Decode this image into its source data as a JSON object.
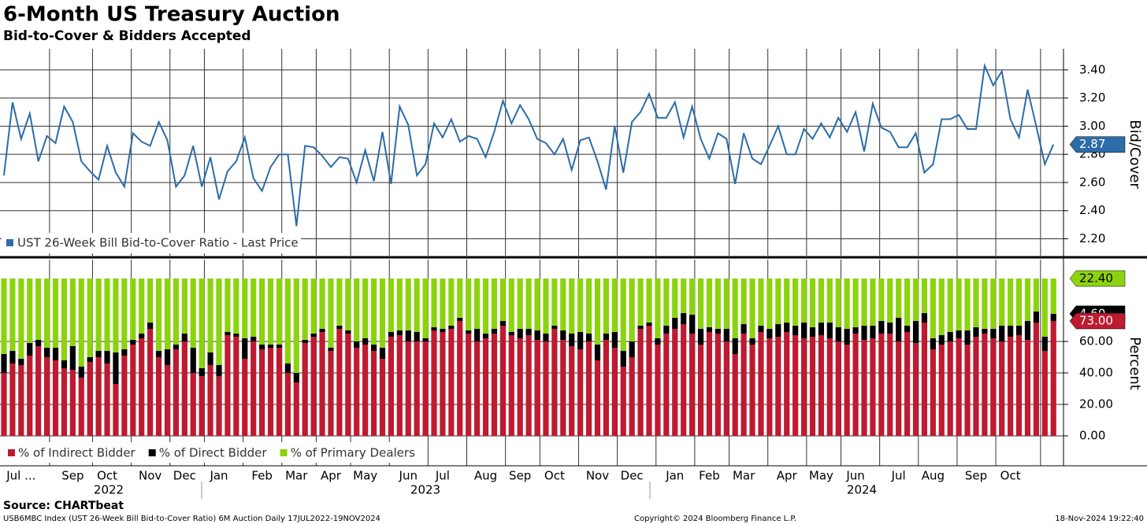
{
  "title": "6-Month US Treasury Auction",
  "subtitle": "Bid-to-Cover & Bidders Accepted",
  "source": "Source: CHARTbeat",
  "footer_left": "USB6MBC Index (UST 26-Week Bill Bid-to-Cover Ratio) 6M Auction  Daily 17JUL2022-19NOV2024",
  "footer_center": "Copyright© 2024 Bloomberg Finance L.P.",
  "footer_right": "18-Nov-2024 19:22:40",
  "year_labels": [
    "2022",
    "2023",
    "2024"
  ],
  "chart_data": [
    {
      "type": "line",
      "y_label": "Bid/Cover",
      "grid": true,
      "legend": "lower left",
      "ylim": [
        2.08,
        3.55
      ],
      "yticks": [
        {
          "value": 2.2,
          "label": "2.20"
        },
        {
          "value": 2.4,
          "label": "2.40"
        },
        {
          "value": 2.6,
          "label": "2.60"
        },
        {
          "value": 2.8,
          "label": "2.80"
        },
        {
          "value": 3.0,
          "label": "3.00"
        },
        {
          "value": 3.2,
          "label": "3.20"
        },
        {
          "value": 3.4,
          "label": "3.40"
        }
      ],
      "series": [
        {
          "name": "UST 26-Week Bill Bid-to-Cover Ratio - Last Price",
          "color": "#2c6ca8",
          "last_label": "2.87",
          "values": [
            2.65,
            3.17,
            2.91,
            3.09,
            2.75,
            2.93,
            2.88,
            3.14,
            3.03,
            2.75,
            2.68,
            2.62,
            2.86,
            2.67,
            2.57,
            2.95,
            2.89,
            2.86,
            3.03,
            2.9,
            2.57,
            2.65,
            2.86,
            2.57,
            2.78,
            2.48,
            2.68,
            2.75,
            2.92,
            2.63,
            2.54,
            2.71,
            2.8,
            2.8,
            2.29,
            2.86,
            2.85,
            2.79,
            2.71,
            2.78,
            2.77,
            2.6,
            2.83,
            2.61,
            2.96,
            2.59,
            3.14,
            3.01,
            2.65,
            2.73,
            3.02,
            2.92,
            3.05,
            2.89,
            2.93,
            2.91,
            2.78,
            2.96,
            3.18,
            3.02,
            3.15,
            3.05,
            2.91,
            2.88,
            2.8,
            2.91,
            2.69,
            2.9,
            2.92,
            2.75,
            2.55,
            3.0,
            2.67,
            3.03,
            3.1,
            3.23,
            3.06,
            3.06,
            3.17,
            2.92,
            3.14,
            2.91,
            2.77,
            2.95,
            2.91,
            2.59,
            2.95,
            2.77,
            2.73,
            2.86,
            3.0,
            2.8,
            2.8,
            2.98,
            2.91,
            3.02,
            2.92,
            3.06,
            2.96,
            3.1,
            2.82,
            3.16,
            2.99,
            2.96,
            2.85,
            2.85,
            2.95,
            2.67,
            2.73,
            3.05,
            3.05,
            3.08,
            2.98,
            2.98,
            3.43,
            3.29,
            3.39,
            3.05,
            2.92,
            3.26,
            3.0,
            2.73,
            2.87
          ]
        }
      ]
    },
    {
      "type": "bar",
      "stacked": true,
      "y_label": "Percent",
      "grid": true,
      "legend": "lower left",
      "ylim": [
        -19,
        112
      ],
      "yticks": [
        {
          "value": 0,
          "label": "0.00"
        },
        {
          "value": 20,
          "label": "20.00"
        },
        {
          "value": 40,
          "label": "40.00"
        },
        {
          "value": 60,
          "label": "60.00"
        }
      ],
      "categories": [
        null,
        null,
        "Jul ...",
        null,
        null,
        null,
        null,
        null,
        "Sep",
        null,
        null,
        null,
        "Oct",
        null,
        null,
        null,
        null,
        "Nov",
        null,
        null,
        null,
        "Dec",
        null,
        null,
        null,
        "Jan",
        null,
        null,
        null,
        null,
        "Feb",
        null,
        null,
        null,
        "Mar",
        null,
        null,
        null,
        "Apr",
        null,
        null,
        null,
        "May",
        null,
        null,
        null,
        null,
        "Jun",
        null,
        null,
        null,
        "Jul",
        null,
        null,
        null,
        null,
        "Aug",
        null,
        null,
        null,
        "Sep",
        null,
        null,
        null,
        "Oct",
        null,
        null,
        null,
        null,
        "Nov",
        null,
        null,
        null,
        "Dec",
        null,
        null,
        null,
        null,
        "Jan",
        null,
        null,
        null,
        "Feb",
        null,
        null,
        null,
        "Mar",
        null,
        null,
        null,
        null,
        "Apr",
        null,
        null,
        null,
        "May",
        null,
        null,
        null,
        "Jun",
        null,
        null,
        null,
        null,
        "Jul",
        null,
        null,
        null,
        "Aug",
        null,
        null,
        null,
        null,
        "Sep",
        null,
        null,
        null,
        "Oct",
        null,
        null,
        null,
        null,
        null
      ],
      "series": [
        {
          "name": "% of Indirect Bidder",
          "color": "#be1a30",
          "last_label": "73.00",
          "values": [
            40,
            46,
            45,
            51,
            57,
            50,
            48,
            43,
            42,
            37,
            47,
            50,
            46,
            33,
            51,
            58,
            62,
            68,
            50,
            45,
            55,
            60,
            40,
            38,
            45,
            38,
            64,
            63,
            49,
            60,
            55,
            56,
            56,
            40,
            34,
            59,
            63,
            66,
            54,
            68,
            65,
            56,
            58,
            54,
            49,
            63,
            64,
            60,
            60,
            60,
            67,
            66,
            68,
            73,
            65,
            60,
            62,
            65,
            70,
            64,
            62,
            64,
            61,
            60,
            68,
            61,
            57,
            55,
            60,
            48,
            61,
            56,
            44,
            50,
            68,
            70,
            58,
            65,
            68,
            71,
            65,
            58,
            66,
            65,
            60,
            52,
            65,
            58,
            66,
            62,
            63,
            66,
            64,
            62,
            63,
            64,
            62,
            60,
            58,
            65,
            61,
            62,
            65,
            65,
            60,
            66,
            59,
            72,
            55,
            58,
            60,
            62,
            58,
            63,
            65,
            62,
            60,
            63,
            64,
            61,
            72,
            54,
            73
          ]
        },
        {
          "name": "% of Direct Bidder",
          "color": "#000000",
          "last_label": "4.60",
          "values": [
            12,
            8,
            4,
            8,
            4,
            6,
            8,
            5,
            15,
            7,
            3,
            4,
            8,
            20,
            4,
            3,
            3,
            4,
            4,
            10,
            3,
            5,
            16,
            5,
            8,
            7,
            2,
            2,
            13,
            3,
            3,
            2,
            2,
            6,
            6,
            2,
            2,
            2,
            2,
            2,
            2,
            4,
            4,
            4,
            7,
            3,
            3,
            7,
            6,
            2,
            2,
            2,
            2,
            2,
            2,
            8,
            3,
            3,
            3,
            2,
            6,
            4,
            6,
            5,
            2,
            6,
            8,
            11,
            5,
            10,
            4,
            10,
            10,
            10,
            2,
            2,
            4,
            5,
            7,
            7,
            12,
            10,
            3,
            3,
            8,
            10,
            6,
            4,
            4,
            6,
            8,
            6,
            6,
            10,
            6,
            8,
            10,
            9,
            10,
            4,
            9,
            8,
            8,
            7,
            15,
            4,
            14,
            6,
            7,
            6,
            6,
            5,
            9,
            6,
            3,
            6,
            10,
            7,
            6,
            12,
            7,
            9,
            4.6
          ]
        },
        {
          "name": "% of Primary Dealers",
          "color": "#8cd30f",
          "last_label": "22.40",
          "values": [
            48,
            46,
            51,
            41,
            39,
            44,
            44,
            52,
            43,
            56,
            50,
            46,
            46,
            47,
            45,
            39,
            35,
            28,
            46,
            45,
            42,
            35,
            44,
            57,
            47,
            55,
            34,
            35,
            38,
            37,
            42,
            42,
            42,
            54,
            60,
            39,
            35,
            32,
            44,
            30,
            33,
            40,
            38,
            42,
            44,
            34,
            33,
            33,
            34,
            38,
            31,
            32,
            30,
            25,
            33,
            32,
            35,
            32,
            27,
            34,
            32,
            32,
            33,
            35,
            30,
            33,
            35,
            34,
            35,
            42,
            35,
            34,
            46,
            40,
            30,
            28,
            38,
            30,
            25,
            22,
            23,
            32,
            31,
            32,
            32,
            38,
            29,
            38,
            30,
            32,
            29,
            28,
            30,
            28,
            31,
            28,
            28,
            31,
            32,
            31,
            30,
            30,
            27,
            28,
            25,
            30,
            27,
            22,
            38,
            36,
            34,
            33,
            33,
            31,
            32,
            32,
            30,
            30,
            30,
            27,
            21,
            37,
            22.4
          ]
        }
      ]
    }
  ]
}
